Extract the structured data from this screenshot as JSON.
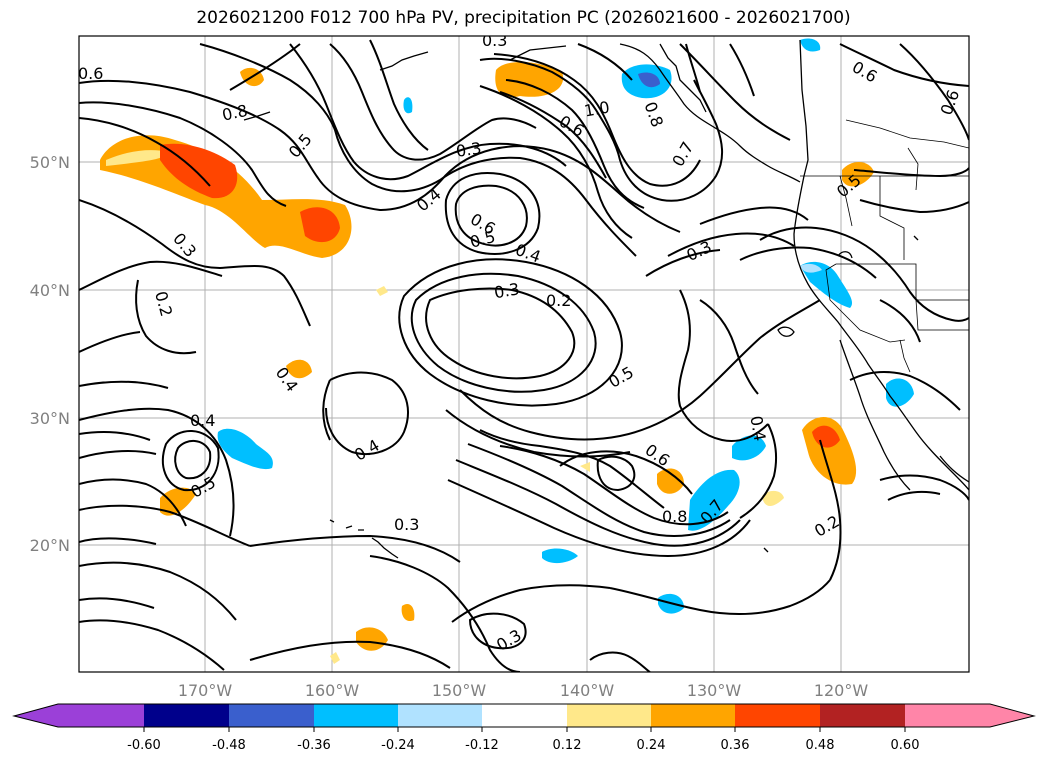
{
  "title": "2026021200 F012 700 hPa PV, precipitation PC (2026021600 - 2026021700)",
  "lat_labels": [
    "50°N",
    "40°N",
    "30°N",
    "20°N"
  ],
  "lon_labels": [
    "170°W",
    "160°W",
    "150°W",
    "140°W",
    "130°W",
    "120°W"
  ],
  "colorbar": {
    "tick_labels": [
      "-0.60",
      "-0.48",
      "-0.36",
      "-0.24",
      "-0.12",
      "0.12",
      "0.24",
      "0.36",
      "0.48",
      "0.60"
    ],
    "colors": {
      "under": "#9b40d8",
      "b1": "#00008b",
      "b2": "#3a5fcd",
      "b3": "#00bfff",
      "b4": "#b0e2ff",
      "b5": "#ffffff",
      "b6": "#ffe88a",
      "b7": "#ffa500",
      "b8": "#ff4500",
      "b9": "#b22222",
      "over": "#ff85a8"
    }
  },
  "contour_labels": [
    "0.6",
    "0.8",
    "0.5",
    "0.3",
    "0.3",
    "0.2",
    "0.4",
    "0.4",
    "0.5",
    "0.4",
    "0.6",
    "0.5",
    "0.4",
    "0.3",
    "0.2",
    "0.5",
    "1.0",
    "0.6",
    "0.8",
    "0.7",
    "0.3",
    "0.3",
    "0.6",
    "0.5",
    "0.6",
    "0.8",
    "0.7",
    "0.4",
    "0.3",
    "0.2",
    "0.3",
    "0.4",
    "0.6"
  ]
}
